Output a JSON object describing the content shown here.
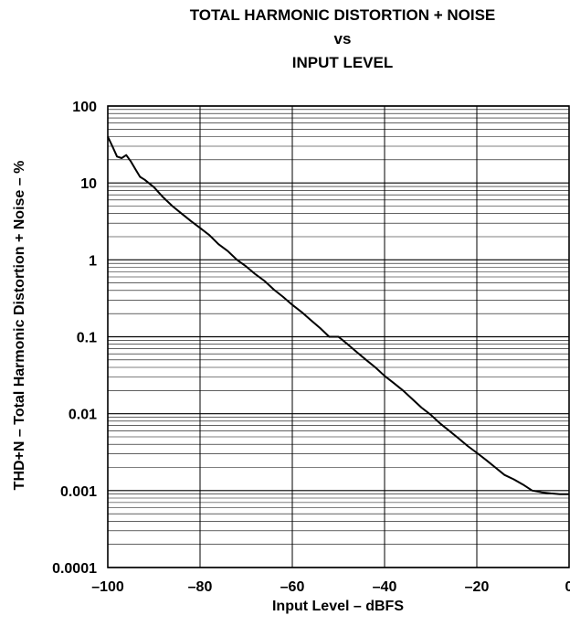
{
  "chart_data": {
    "type": "line",
    "title_lines": [
      "TOTAL HARMONIC DISTORTION + NOISE",
      "vs",
      "INPUT LEVEL"
    ],
    "xlabel": "Input Level – dBFS",
    "ylabel": "THD+N – Total Harmonic Distortion + Noise – %",
    "xlim": [
      -100,
      0
    ],
    "ylim": [
      0.0001,
      100
    ],
    "yscale": "log",
    "grid": true,
    "x_ticks": [
      {
        "value": -100,
        "label": "–100"
      },
      {
        "value": -80,
        "label": "–80"
      },
      {
        "value": -60,
        "label": "–60"
      },
      {
        "value": -40,
        "label": "–40"
      },
      {
        "value": -20,
        "label": "–20"
      },
      {
        "value": 0,
        "label": "0"
      }
    ],
    "y_ticks": [
      {
        "value": 100,
        "label": "100"
      },
      {
        "value": 10,
        "label": "10"
      },
      {
        "value": 1,
        "label": "1"
      },
      {
        "value": 0.1,
        "label": "0.1"
      },
      {
        "value": 0.01,
        "label": "0.01"
      },
      {
        "value": 0.001,
        "label": "0.001"
      },
      {
        "value": 0.0001,
        "label": "0.0001"
      }
    ],
    "series": [
      {
        "x": [
          -100,
          -99,
          -98,
          -97,
          -96,
          -95,
          -94,
          -93,
          -92,
          -90,
          -88,
          -86,
          -84,
          -82,
          -80,
          -78,
          -76,
          -74,
          -72,
          -70,
          -68,
          -66,
          -64,
          -62,
          -60,
          -58,
          -56,
          -54,
          -52,
          -50,
          -48,
          -46,
          -44,
          -42,
          -40,
          -38,
          -36,
          -34,
          -32,
          -30,
          -28,
          -26,
          -24,
          -22,
          -20,
          -18,
          -16,
          -14,
          -12,
          -10,
          -8,
          -6,
          -4,
          -2,
          0
        ],
        "y": [
          40,
          30,
          22,
          21,
          23,
          19,
          15,
          12,
          11,
          8.8,
          6.5,
          5,
          4,
          3.2,
          2.6,
          2.1,
          1.6,
          1.3,
          1.0,
          0.82,
          0.65,
          0.53,
          0.41,
          0.33,
          0.26,
          0.21,
          0.165,
          0.13,
          0.1,
          0.1,
          0.08,
          0.063,
          0.05,
          0.04,
          0.031,
          0.025,
          0.02,
          0.0155,
          0.012,
          0.0097,
          0.0075,
          0.006,
          0.0048,
          0.0038,
          0.0031,
          0.0025,
          0.002,
          0.0016,
          0.0014,
          0.0012,
          0.001,
          0.00095,
          0.00092,
          0.0009,
          0.0009
        ]
      }
    ]
  }
}
